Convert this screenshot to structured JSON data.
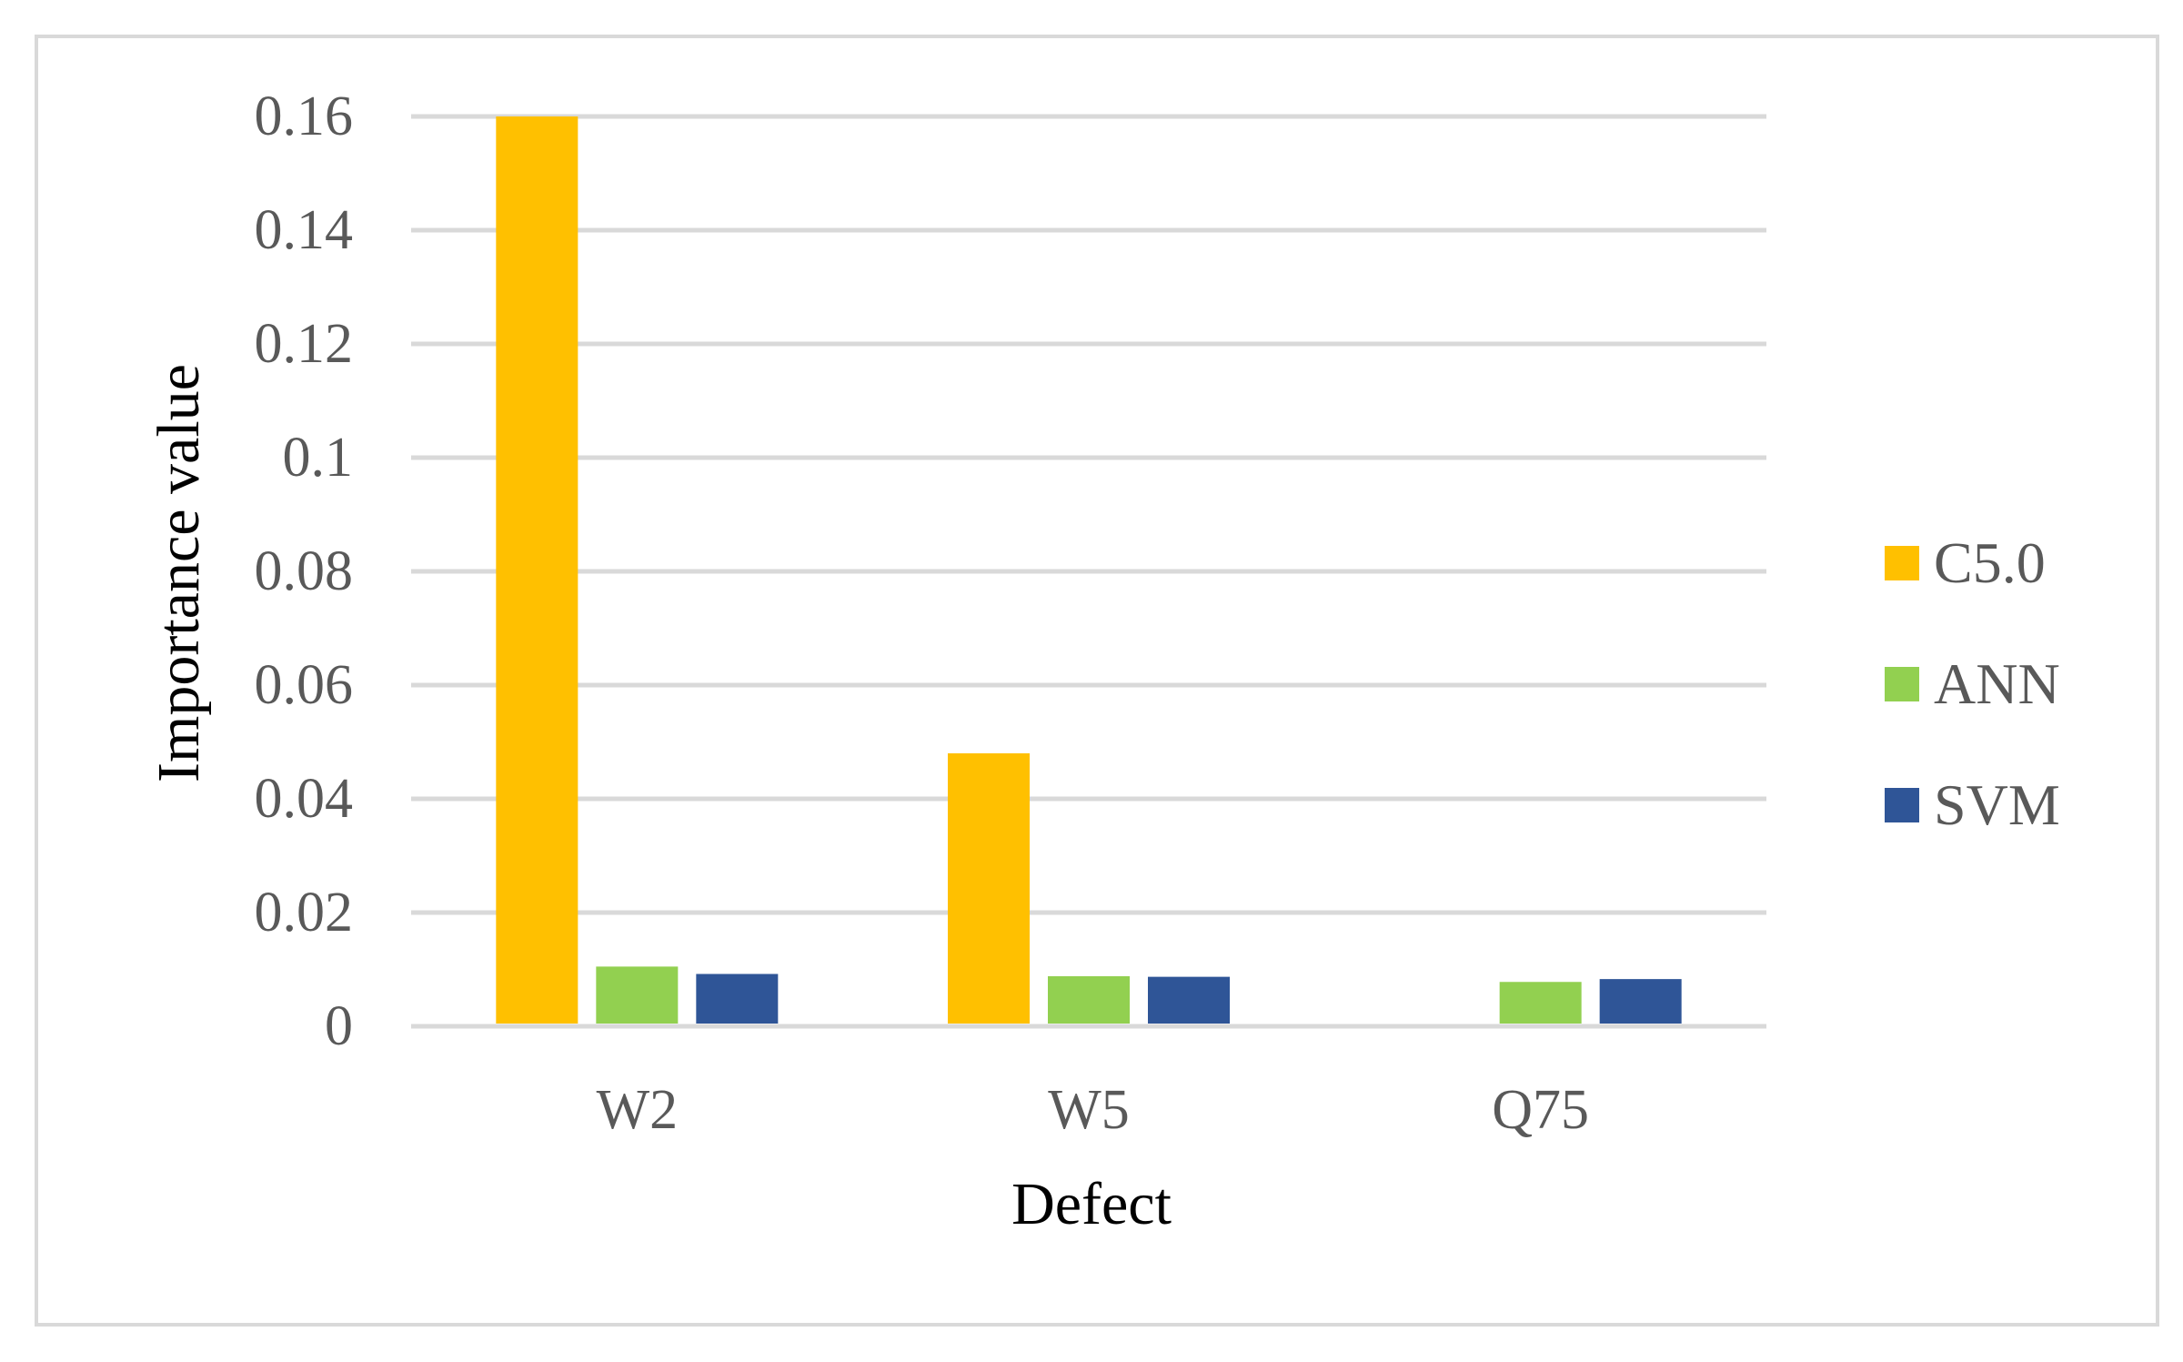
{
  "chart_data": {
    "type": "bar",
    "title": "",
    "xlabel": "Defect",
    "ylabel": "Importance value",
    "categories": [
      "W2",
      "W5",
      "Q75"
    ],
    "series": [
      {
        "name": "C5.0",
        "values": [
          0.16,
          0.048,
          0
        ],
        "color": "#FFC000"
      },
      {
        "name": "ANN",
        "values": [
          0.0105,
          0.0088,
          0.0078
        ],
        "color": "#92D050"
      },
      {
        "name": "SVM",
        "values": [
          0.0092,
          0.0087,
          0.0083
        ],
        "color": "#2F5597"
      }
    ],
    "ylim": [
      0,
      0.16
    ],
    "yticks": [
      "0",
      "0.02",
      "0.04",
      "0.06",
      "0.08",
      "0.1",
      "0.12",
      "0.14",
      "0.16"
    ],
    "grid": true,
    "gridColor": "#d9d9d9",
    "legend": "right"
  }
}
